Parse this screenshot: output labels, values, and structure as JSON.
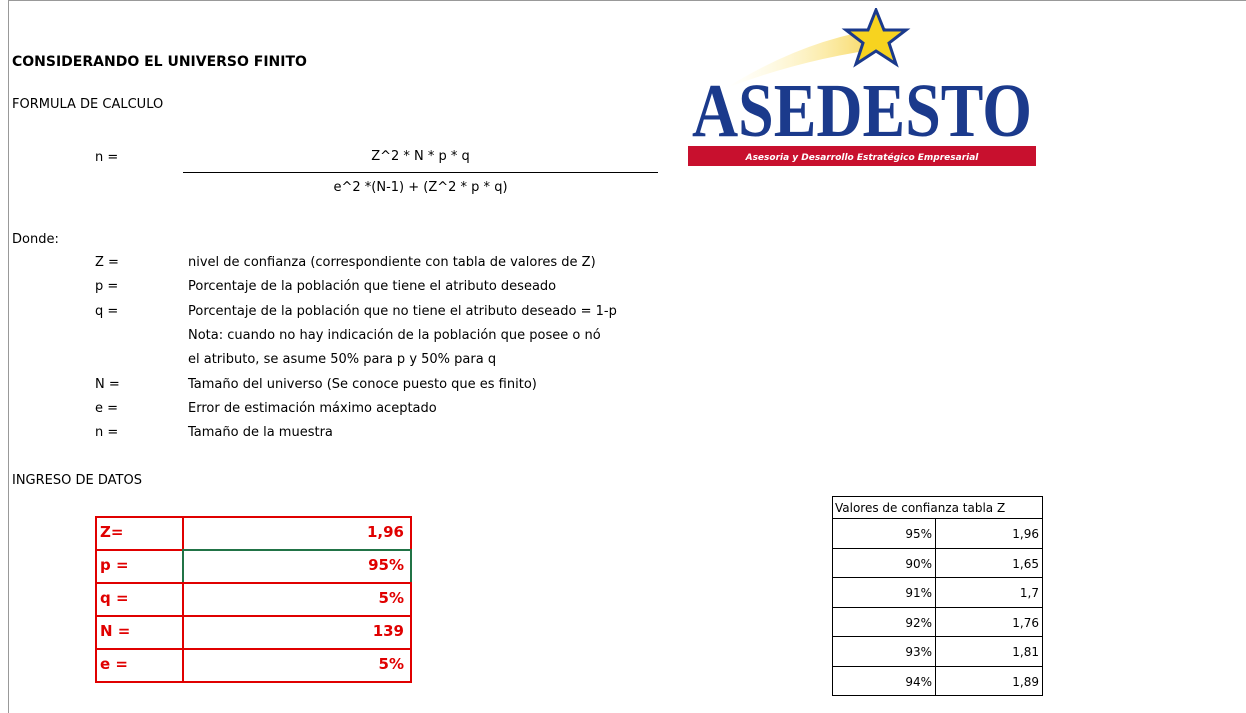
{
  "title": "CONSIDERANDO EL UNIVERSO FINITO",
  "formula_heading": "FORMULA DE CALCULO",
  "formula": {
    "lhs": "n =",
    "numerator": "Z^2 * N * p * q",
    "denominator": "e^2 *(N-1) + (Z^2 * p * q)"
  },
  "logo": {
    "name": "ASEDESTO",
    "tagline": "Asesoria y Desarrollo Estratégico Empresarial"
  },
  "definitions_heading": "Donde:",
  "definitions": [
    {
      "symbol": "Z =",
      "text": "nivel de confianza (correspondiente con tabla de valores de Z)"
    },
    {
      "symbol": "p =",
      "text": "Porcentaje de la población que tiene el atributo deseado"
    },
    {
      "symbol": "q =",
      "text": "Porcentaje de la población que no tiene el atributo deseado = 1-p"
    },
    {
      "text": "Nota: cuando no hay indicación de la población que posee o nó"
    },
    {
      "text": "el atributo, se asume 50% para p y 50% para q"
    },
    {
      "symbol": "N =",
      "text": "Tamaño del universo (Se conoce puesto que es finito)"
    },
    {
      "symbol": "e =",
      "text": "Error de estimación máximo aceptado"
    },
    {
      "symbol": "n =",
      "text": "Tamaño de la muestra"
    }
  ],
  "input_heading": "INGRESO DE DATOS",
  "input_table": {
    "rows": [
      [
        "Z=",
        "1,96"
      ],
      [
        "p =",
        "95%"
      ],
      [
        "q =",
        "5%"
      ],
      [
        "N =",
        "139"
      ],
      [
        "e =",
        "5%"
      ]
    ]
  },
  "z_table": {
    "header": "Valores de confianza tabla Z",
    "rows": [
      [
        "95%",
        "1,96"
      ],
      [
        "90%",
        "1,65"
      ],
      [
        "91%",
        "1,7"
      ],
      [
        "92%",
        "1,76"
      ],
      [
        "93%",
        "1,81"
      ],
      [
        "94%",
        "1,89"
      ]
    ]
  }
}
